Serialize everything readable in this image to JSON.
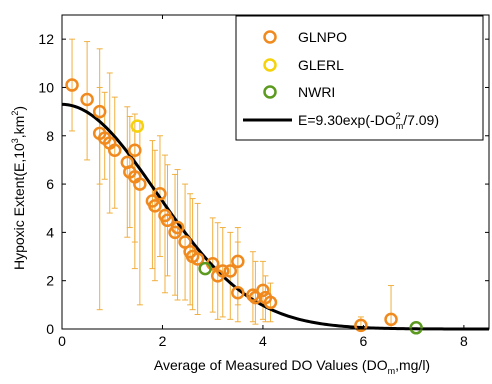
{
  "chart_data": {
    "type": "scatter",
    "title": "",
    "xlabel_main": "Average of Measured DO Values (DO",
    "xlabel_sub": "m",
    "xlabel_tail": ",mg/l)",
    "ylabel_main": "Hypoxic Extent(E,10",
    "ylabel_sup1": "3",
    "ylabel_mid": ",km",
    "ylabel_sup2": "2",
    "ylabel_tail": ")",
    "xlim": [
      0,
      8.5
    ],
    "ylim": [
      0,
      13
    ],
    "xticks": [
      "0",
      "2",
      "4",
      "6",
      "8"
    ],
    "yticks": [
      "0",
      "2",
      "4",
      "6",
      "8",
      "10",
      "12"
    ],
    "legend_position": "top-right",
    "legend": {
      "glnpo": "GLNPO",
      "glerl": "GLERL",
      "nwri": "NWRI",
      "fit_main": "E=9.30exp(-DO",
      "fit_sup": "2",
      "fit_sub": "m",
      "fit_tail": "/7.09)"
    },
    "colors": {
      "glnpo": "#f08a1e",
      "glnpo_error": "#f0b040",
      "glerl": "#f5d20a",
      "nwri": "#5b9a1e",
      "fit": "#000000"
    },
    "fit": {
      "a": 9.3,
      "b": 7.09
    },
    "series": [
      {
        "name": "GLNPO",
        "points": [
          {
            "x": 0.2,
            "y": 10.1,
            "lo": 8.2,
            "hi": 12.0
          },
          {
            "x": 0.5,
            "y": 9.5,
            "lo": 7.0,
            "hi": 11.9
          },
          {
            "x": 0.75,
            "y": 9.0,
            "lo": 0.8,
            "hi": 11.6
          },
          {
            "x": 0.75,
            "y": 8.1,
            "lo": 6.0,
            "hi": 10.0
          },
          {
            "x": 0.85,
            "y": 7.9,
            "lo": 6.2,
            "hi": 9.8
          },
          {
            "x": 0.95,
            "y": 7.7,
            "lo": 4.8,
            "hi": 10.6
          },
          {
            "x": 1.05,
            "y": 7.4,
            "lo": 5.0,
            "hi": 9.6
          },
          {
            "x": 1.3,
            "y": 6.9,
            "lo": 3.8,
            "hi": 9.2
          },
          {
            "x": 1.35,
            "y": 6.5,
            "lo": 4.2,
            "hi": 8.8
          },
          {
            "x": 1.45,
            "y": 7.4,
            "lo": 2.5,
            "hi": 8.2
          },
          {
            "x": 1.45,
            "y": 6.3,
            "lo": 3.6,
            "hi": 8.9
          },
          {
            "x": 1.55,
            "y": 6.0,
            "lo": 1.0,
            "hi": 8.6
          },
          {
            "x": 1.8,
            "y": 5.3,
            "lo": 2.5,
            "hi": 7.8
          },
          {
            "x": 1.85,
            "y": 5.1,
            "lo": 2.0,
            "hi": 7.4
          },
          {
            "x": 1.95,
            "y": 5.6,
            "lo": 3.0,
            "hi": 8.0
          },
          {
            "x": 2.05,
            "y": 4.7,
            "lo": 1.5,
            "hi": 7.2
          },
          {
            "x": 2.1,
            "y": 4.5,
            "lo": 2.2,
            "hi": 6.8
          },
          {
            "x": 2.25,
            "y": 4.0,
            "lo": 1.4,
            "hi": 6.4
          },
          {
            "x": 2.3,
            "y": 4.2,
            "lo": 1.2,
            "hi": 6.6
          },
          {
            "x": 2.45,
            "y": 3.6,
            "lo": 1.2,
            "hi": 6.0
          },
          {
            "x": 2.55,
            "y": 3.2,
            "lo": 1.0,
            "hi": 5.6
          },
          {
            "x": 2.6,
            "y": 3.0,
            "lo": 0.8,
            "hi": 5.4
          },
          {
            "x": 2.7,
            "y": 2.9,
            "lo": 0.6,
            "hi": 5.2
          },
          {
            "x": 3.0,
            "y": 2.7,
            "lo": 0.7,
            "hi": 4.6
          },
          {
            "x": 3.1,
            "y": 2.2,
            "lo": 0.4,
            "hi": 4.4
          },
          {
            "x": 3.2,
            "y": 2.4,
            "lo": 0.5,
            "hi": 4.2
          },
          {
            "x": 3.35,
            "y": 2.4,
            "lo": 0.4,
            "hi": 4.0
          },
          {
            "x": 3.5,
            "y": 2.8,
            "lo": 1.0,
            "hi": 4.2
          },
          {
            "x": 3.5,
            "y": 1.5,
            "lo": 0.3,
            "hi": 3.6
          },
          {
            "x": 3.8,
            "y": 1.4,
            "lo": 0.3,
            "hi": 3.2
          },
          {
            "x": 3.85,
            "y": 1.3,
            "lo": 0.2,
            "hi": 2.8
          },
          {
            "x": 4.0,
            "y": 1.6,
            "lo": 0.4,
            "hi": 2.8
          },
          {
            "x": 4.05,
            "y": 1.3,
            "lo": 0.3,
            "hi": 2.2
          },
          {
            "x": 4.15,
            "y": 1.1,
            "lo": 0.3,
            "hi": 1.9
          },
          {
            "x": 5.95,
            "y": 0.15,
            "lo": 0.0,
            "hi": 0.5
          },
          {
            "x": 6.55,
            "y": 0.4,
            "lo": 0.0,
            "hi": 1.8
          }
        ]
      },
      {
        "name": "GLERL",
        "points": [
          {
            "x": 1.5,
            "y": 8.4
          }
        ]
      },
      {
        "name": "NWRI",
        "points": [
          {
            "x": 2.85,
            "y": 2.5
          },
          {
            "x": 7.05,
            "y": 0.05
          }
        ]
      }
    ]
  }
}
